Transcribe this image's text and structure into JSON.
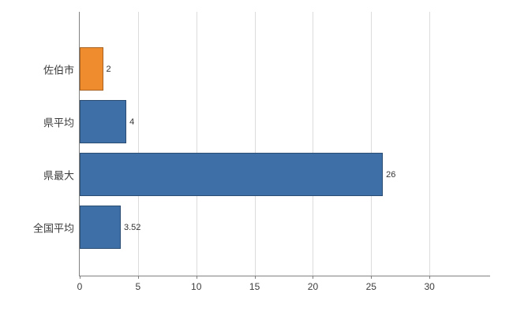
{
  "chart_data": {
    "type": "bar",
    "orientation": "horizontal",
    "title": "",
    "xlabel": "",
    "ylabel": "",
    "categories": [
      "佐伯市",
      "県平均",
      "県最大",
      "全国平均"
    ],
    "values": [
      2,
      4,
      26,
      3.52
    ],
    "value_labels": [
      "2",
      "4",
      "26",
      "3.52"
    ],
    "bar_colors": [
      "#ef8c2e",
      "#3e6fa7",
      "#3e6fa7",
      "#3e6fa7"
    ],
    "xlim": [
      0,
      35.2
    ],
    "xticks": [
      0,
      5,
      10,
      15,
      20,
      25,
      30
    ],
    "grid": true,
    "legend": "none"
  },
  "colors": {
    "bar_default": "#3e6fa7",
    "bar_highlight": "#ef8c2e",
    "grid": "#dcdcdc",
    "axis": "#808080",
    "label_text": "#3c3c3c"
  }
}
